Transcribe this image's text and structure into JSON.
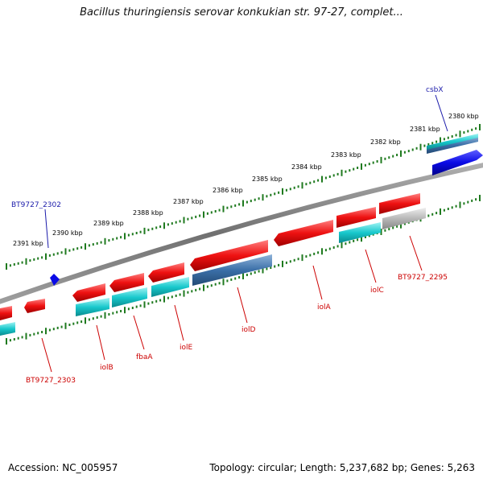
{
  "title": "Bacillus thuringiensis serovar konkukian str. 97-27, complet...",
  "footer": {
    "accession": "Accession: NC_005957",
    "topology": "Topology: circular; Length: 5,237,682 bp; Genes: 5,263"
  },
  "colors": {
    "forward_gene": "#ee1111",
    "reverse_gene": "#18c8cc",
    "rna_gene": "#3b6fa8",
    "pseudo_gene": "#b8b8b8",
    "blue_feature": "#0a0ae6",
    "backbone": "#808080",
    "tick": "#1f7a1f",
    "label_red": "#cc0000",
    "label_blue": "#1a1aaa"
  },
  "kbp_ticks": [
    "2380 kbp",
    "2381 kbp",
    "2382 kbp",
    "2383 kbp",
    "2384 kbp",
    "2385 kbp",
    "2386 kbp",
    "2387 kbp",
    "2388 kbp",
    "2389 kbp",
    "2390 kbp",
    "2391 kbp"
  ],
  "gene_labels": [
    {
      "name": "csbX",
      "color": "blue"
    },
    {
      "name": "BT9727_2302",
      "color": "blue"
    },
    {
      "name": "BT9727_2295",
      "color": "red"
    },
    {
      "name": "iolC",
      "color": "red"
    },
    {
      "name": "iolA",
      "color": "red"
    },
    {
      "name": "iolD",
      "color": "red"
    },
    {
      "name": "iolE",
      "color": "red"
    },
    {
      "name": "fbaA",
      "color": "red"
    },
    {
      "name": "iolB",
      "color": "red"
    },
    {
      "name": "BT9727_2303",
      "color": "red"
    }
  ]
}
